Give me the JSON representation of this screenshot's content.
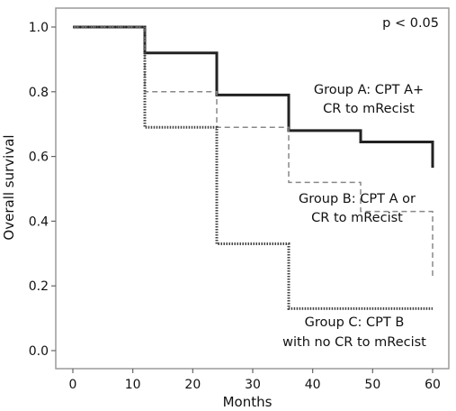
{
  "chart_data": {
    "type": "line",
    "subtype": "kaplan-meier step curves",
    "xlabel": "Months",
    "ylabel": "Overall survival",
    "xlim": [
      -5,
      63
    ],
    "ylim": [
      -0.05,
      1.05
    ],
    "x_ticks": [
      0,
      10,
      20,
      30,
      40,
      50,
      60
    ],
    "y_ticks": [
      0.0,
      0.2,
      0.4,
      0.6,
      0.8,
      1.0
    ],
    "y_tick_labels": [
      "0.0",
      "0.2",
      "0.4",
      "0.6",
      "0.8",
      "1.0"
    ],
    "grid": false,
    "annotation_pvalue": "p < 0.05",
    "series": [
      {
        "label_lines": [
          "Group A: CPT A+",
          "CR to mRecist"
        ],
        "style": "solid",
        "color": "#222222",
        "steps": [
          [
            0,
            1.0
          ],
          [
            12,
            0.92
          ],
          [
            24,
            0.79
          ],
          [
            36,
            0.68
          ],
          [
            48,
            0.645
          ],
          [
            60,
            0.6
          ],
          [
            60,
            0.565
          ]
        ]
      },
      {
        "label_lines": [
          "Group B: CPT A or",
          "CR to mRecist"
        ],
        "style": "dashed",
        "color": "#888888",
        "steps": [
          [
            0,
            1.0
          ],
          [
            12,
            0.8
          ],
          [
            24,
            0.69
          ],
          [
            36,
            0.52
          ],
          [
            48,
            0.43
          ],
          [
            60,
            0.43
          ],
          [
            60,
            0.23
          ]
        ]
      },
      {
        "label_lines": [
          "Group C: CPT B",
          "with no CR to mRecist"
        ],
        "style": "dotted",
        "color": "#444444",
        "steps": [
          [
            0,
            1.0
          ],
          [
            12,
            0.69
          ],
          [
            24,
            0.33
          ],
          [
            36,
            0.13
          ],
          [
            60,
            0.13
          ]
        ]
      }
    ]
  }
}
